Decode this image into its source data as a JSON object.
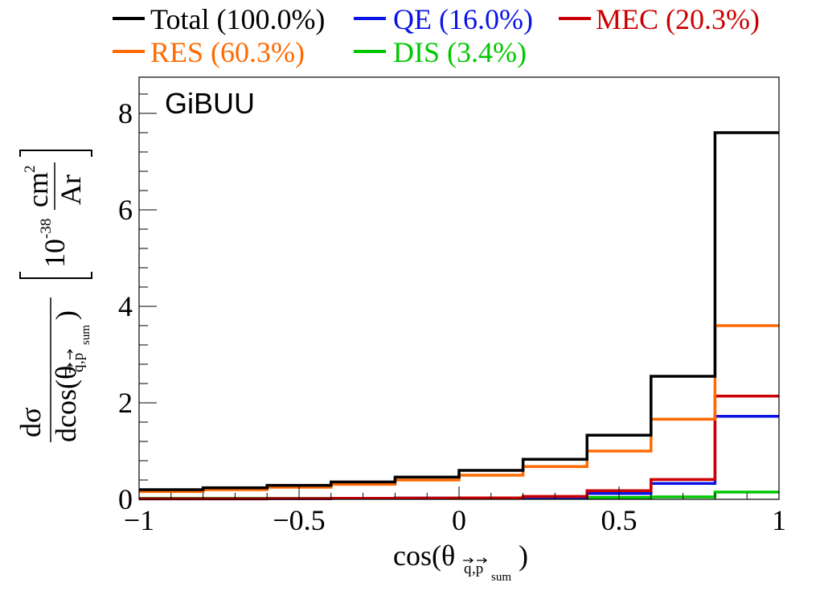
{
  "chart_data": {
    "type": "line",
    "step": true,
    "title": "",
    "annotation": "GiBUU",
    "xlabel": {
      "main": "cos(θ",
      "sub_q": "q",
      "sub_comma_p": ",p",
      "sub_sum": "sum",
      "close": ")"
    },
    "ylabel": {
      "num": "dσ",
      "den_main": "dcos(θ",
      "den_sub_q": "q",
      "den_sub_comma_p": ",p",
      "den_sub_sum": "sum",
      "den_close": ")",
      "unit_base": "10",
      "unit_exp": "-38",
      "unit_num": "cm",
      "unit_num_exp": "2",
      "unit_den": "Ar"
    },
    "xlim": [
      -1,
      1
    ],
    "ylim": [
      0,
      8.75
    ],
    "x_ticks": [
      -1,
      -0.5,
      0,
      0.5,
      1
    ],
    "x_tick_labels": [
      "−1",
      "−0.5",
      "0",
      "0.5",
      "1"
    ],
    "y_ticks": [
      0,
      2,
      4,
      6,
      8
    ],
    "y_tick_labels": [
      "0",
      "2",
      "4",
      "6",
      "8"
    ],
    "bin_edges": [
      -1,
      -0.8,
      -0.6,
      -0.4,
      -0.2,
      0,
      0.2,
      0.4,
      0.6,
      0.8,
      1
    ],
    "legend_position": "top",
    "series": [
      {
        "name": "Total (100.0%)",
        "color": "#000000",
        "values": [
          0.2,
          0.24,
          0.29,
          0.36,
          0.46,
          0.6,
          0.83,
          1.33,
          2.55,
          7.6
        ]
      },
      {
        "name": "QE (16.0%)",
        "color": "#0a14e6",
        "values": [
          0.01,
          0.01,
          0.015,
          0.02,
          0.025,
          0.03,
          0.04,
          0.12,
          0.33,
          1.72
        ]
      },
      {
        "name": "MEC (20.3%)",
        "color": "#cc0000",
        "values": [
          0.01,
          0.01,
          0.015,
          0.02,
          0.025,
          0.03,
          0.06,
          0.18,
          0.41,
          2.14
        ]
      },
      {
        "name": "RES (60.3%)",
        "color": "#ff6a00",
        "values": [
          0.16,
          0.2,
          0.25,
          0.31,
          0.4,
          0.5,
          0.68,
          1.0,
          1.66,
          3.6
        ]
      },
      {
        "name": "DIS (3.4%)",
        "color": "#00c800",
        "values": [
          0.02,
          0.02,
          0.02,
          0.02,
          0.025,
          0.03,
          0.035,
          0.04,
          0.05,
          0.15
        ]
      }
    ]
  }
}
